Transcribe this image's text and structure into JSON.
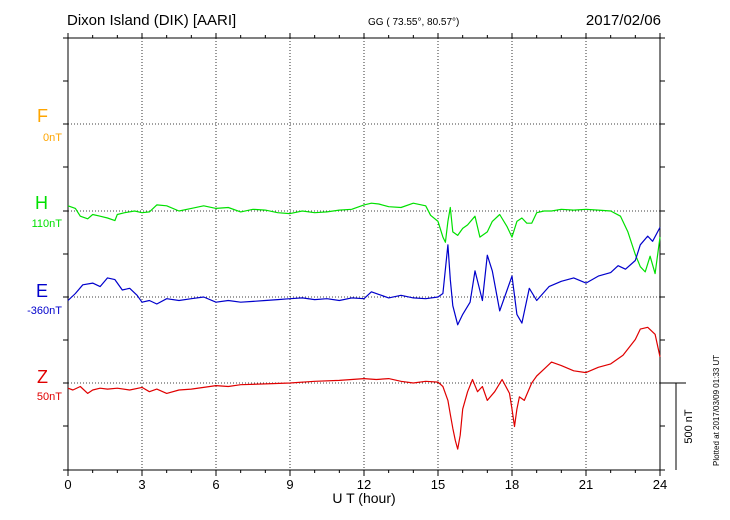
{
  "header": {
    "station": "Dixon Island (DIK)  [AARI]",
    "coordinates": "GG ( 73.55°,  80.57°)",
    "date": "2017/02/06"
  },
  "plotted_note": "Plotted at 2017/03/09 01:33 UT",
  "scale_bar_label": "500 nT",
  "colors": {
    "F": "#ffa500",
    "H": "#00e000",
    "E": "#0000cc",
    "Z": "#e00000"
  },
  "chart_data": {
    "type": "line",
    "xlabel": "U T (hour)",
    "x_ticks": [
      0,
      3,
      6,
      9,
      12,
      15,
      18,
      21,
      24
    ],
    "xlim": [
      0,
      24
    ],
    "grid": true,
    "series": [
      {
        "name": "F",
        "baseline_label": "0nT",
        "values": []
      },
      {
        "name": "H",
        "baseline_label": "110nT",
        "x": [
          0,
          0.3,
          0.5,
          0.8,
          1.0,
          1.3,
          1.6,
          1.9,
          2.0,
          2.3,
          2.7,
          3.0,
          3.3,
          3.6,
          4.0,
          4.5,
          5.0,
          5.5,
          6.0,
          6.5,
          7.0,
          7.5,
          8.0,
          8.5,
          9.0,
          9.5,
          10.0,
          10.5,
          11.0,
          11.5,
          12.0,
          12.3,
          12.6,
          13.0,
          13.5,
          14.0,
          14.5,
          14.7,
          15.0,
          15.2,
          15.3,
          15.4,
          15.5,
          15.6,
          15.8,
          16.0,
          16.2,
          16.5,
          16.7,
          17.0,
          17.2,
          17.5,
          17.8,
          18.0,
          18.2,
          18.4,
          18.6,
          18.8,
          19.0,
          19.3,
          19.6,
          20.0,
          20.5,
          21.0,
          21.5,
          22.0,
          22.4,
          22.7,
          23.0,
          23.2,
          23.4,
          23.6,
          23.8,
          24.0
        ],
        "values": [
          30,
          15,
          -30,
          -45,
          -20,
          -30,
          -40,
          -55,
          -20,
          -10,
          0,
          -10,
          -5,
          35,
          30,
          0,
          15,
          30,
          15,
          20,
          -5,
          10,
          5,
          -10,
          -15,
          0,
          -10,
          -5,
          5,
          10,
          35,
          45,
          40,
          25,
          20,
          45,
          30,
          -25,
          -60,
          -150,
          -180,
          -60,
          20,
          -120,
          -140,
          -100,
          -80,
          -30,
          -150,
          -120,
          -60,
          -20,
          -90,
          -150,
          -60,
          -40,
          -70,
          -70,
          -10,
          0,
          0,
          10,
          5,
          10,
          5,
          0,
          -30,
          -120,
          -250,
          -320,
          -350,
          -260,
          -360,
          -150
        ]
      },
      {
        "name": "E",
        "baseline_label": "-360nT",
        "x": [
          0,
          0.3,
          0.6,
          1.0,
          1.3,
          1.6,
          1.9,
          2.2,
          2.5,
          2.8,
          3.0,
          3.3,
          3.6,
          4.0,
          4.5,
          5.0,
          5.5,
          6.0,
          6.5,
          7.0,
          7.5,
          8.0,
          8.5,
          9.0,
          9.5,
          10.0,
          10.5,
          11.0,
          11.5,
          12.0,
          12.3,
          12.6,
          13.0,
          13.5,
          14.0,
          14.5,
          15.0,
          15.2,
          15.4,
          15.5,
          15.6,
          15.8,
          16.0,
          16.3,
          16.5,
          16.8,
          17.0,
          17.2,
          17.5,
          17.8,
          18.0,
          18.2,
          18.4,
          18.7,
          19.0,
          19.5,
          20.0,
          20.5,
          21.0,
          21.5,
          22.0,
          22.3,
          22.6,
          23.0,
          23.2,
          23.5,
          23.7,
          24.0
        ],
        "values": [
          -20,
          20,
          70,
          80,
          60,
          110,
          100,
          40,
          50,
          10,
          -30,
          -20,
          -40,
          -10,
          -20,
          -10,
          0,
          -30,
          -20,
          -30,
          -25,
          -20,
          -15,
          -10,
          -5,
          -15,
          -10,
          -20,
          -5,
          -10,
          30,
          15,
          -5,
          10,
          -5,
          -10,
          0,
          20,
          300,
          100,
          -50,
          -160,
          -100,
          -30,
          150,
          -20,
          240,
          150,
          -80,
          40,
          120,
          -100,
          -150,
          50,
          -20,
          60,
          90,
          110,
          80,
          120,
          140,
          180,
          160,
          210,
          300,
          350,
          320,
          400
        ]
      },
      {
        "name": "Z",
        "baseline_label": "50nT",
        "x": [
          0,
          0.2,
          0.5,
          0.8,
          1.0,
          1.3,
          1.6,
          2.0,
          2.5,
          3.0,
          3.3,
          3.6,
          4.0,
          4.5,
          5.0,
          5.5,
          6.0,
          6.5,
          7.0,
          8.0,
          9.0,
          10.0,
          11.0,
          12.0,
          12.5,
          13.0,
          13.5,
          14.0,
          14.5,
          15.0,
          15.2,
          15.4,
          15.5,
          15.6,
          15.7,
          15.8,
          15.9,
          16.0,
          16.2,
          16.4,
          16.6,
          16.8,
          17.0,
          17.3,
          17.6,
          17.9,
          18.0,
          18.1,
          18.2,
          18.3,
          18.5,
          18.8,
          19.0,
          19.3,
          19.6,
          20.0,
          20.5,
          21.0,
          21.5,
          22.0,
          22.5,
          23.0,
          23.2,
          23.5,
          23.8,
          24.0
        ],
        "values": [
          -30,
          -40,
          -20,
          -60,
          -40,
          -30,
          -35,
          -30,
          -40,
          -25,
          -50,
          -35,
          -60,
          -40,
          -35,
          -25,
          -15,
          -20,
          -10,
          -5,
          0,
          10,
          15,
          25,
          20,
          25,
          10,
          0,
          10,
          5,
          -20,
          -100,
          -180,
          -260,
          -330,
          -380,
          -300,
          -150,
          -50,
          20,
          -50,
          -20,
          -100,
          -50,
          20,
          -60,
          -150,
          -250,
          -150,
          -80,
          -100,
          0,
          40,
          80,
          120,
          100,
          70,
          60,
          90,
          110,
          160,
          250,
          310,
          320,
          280,
          150
        ]
      }
    ]
  }
}
